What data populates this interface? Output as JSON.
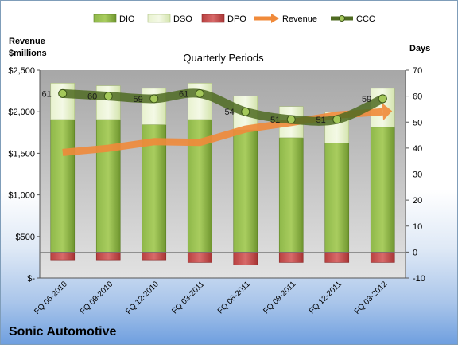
{
  "chart_data": {
    "type": "combo",
    "title": "Quarterly Periods",
    "company": "Sonic Automotive",
    "left_axis_label": [
      "Revenue",
      "$millions"
    ],
    "right_axis_label": "Days",
    "left_axis_ticks": [
      "$-",
      "$500",
      "$1,000",
      "$1,500",
      "$2,000",
      "$2,500"
    ],
    "left_axis_range": [
      0,
      2500
    ],
    "right_axis_ticks": [
      "-10",
      "0",
      "10",
      "20",
      "30",
      "40",
      "50",
      "60",
      "70"
    ],
    "right_axis_range": [
      -10,
      70
    ],
    "categories": [
      "FQ 06-2010",
      "FQ 09-2010",
      "FQ 12-2010",
      "FQ 03-2011",
      "FQ 06-2011",
      "FQ 09-2011",
      "FQ 12-2011",
      "FQ 03-2012"
    ],
    "legend": [
      "DIO",
      "DSO",
      "DPO",
      "Revenue",
      "CCC"
    ],
    "series": [
      {
        "name": "DIO",
        "axis": "days",
        "kind": "stacked-bar",
        "values": [
          51,
          51,
          49,
          51,
          47,
          44,
          42,
          48
        ]
      },
      {
        "name": "DSO",
        "axis": "days",
        "kind": "stacked-bar",
        "values": [
          14,
          13,
          14,
          14,
          13,
          12,
          12,
          15
        ]
      },
      {
        "name": "DPO",
        "axis": "days",
        "kind": "negative-bar",
        "values": [
          -3,
          -3,
          -3,
          -4,
          -5,
          -4,
          -4,
          -4
        ]
      },
      {
        "name": "Revenue",
        "axis": "revenue",
        "kind": "line",
        "values": [
          1510,
          1560,
          1640,
          1630,
          1790,
          1870,
          1960,
          2000
        ]
      },
      {
        "name": "CCC",
        "axis": "days",
        "kind": "line",
        "values": [
          61,
          60,
          59,
          61,
          54,
          51,
          51,
          59
        ],
        "labels": [
          "61",
          "60",
          "59",
          "61",
          "54",
          "51",
          "51",
          "59"
        ]
      }
    ],
    "colors": {
      "dio": "#7aa33a",
      "dso": "#e4efc8",
      "dpo": "#c04a4a",
      "revenue": "#f08a3a",
      "ccc": "#4f6b22",
      "plot_bg": "#c4c4c4"
    },
    "grid": false,
    "legend_position": "top"
  }
}
